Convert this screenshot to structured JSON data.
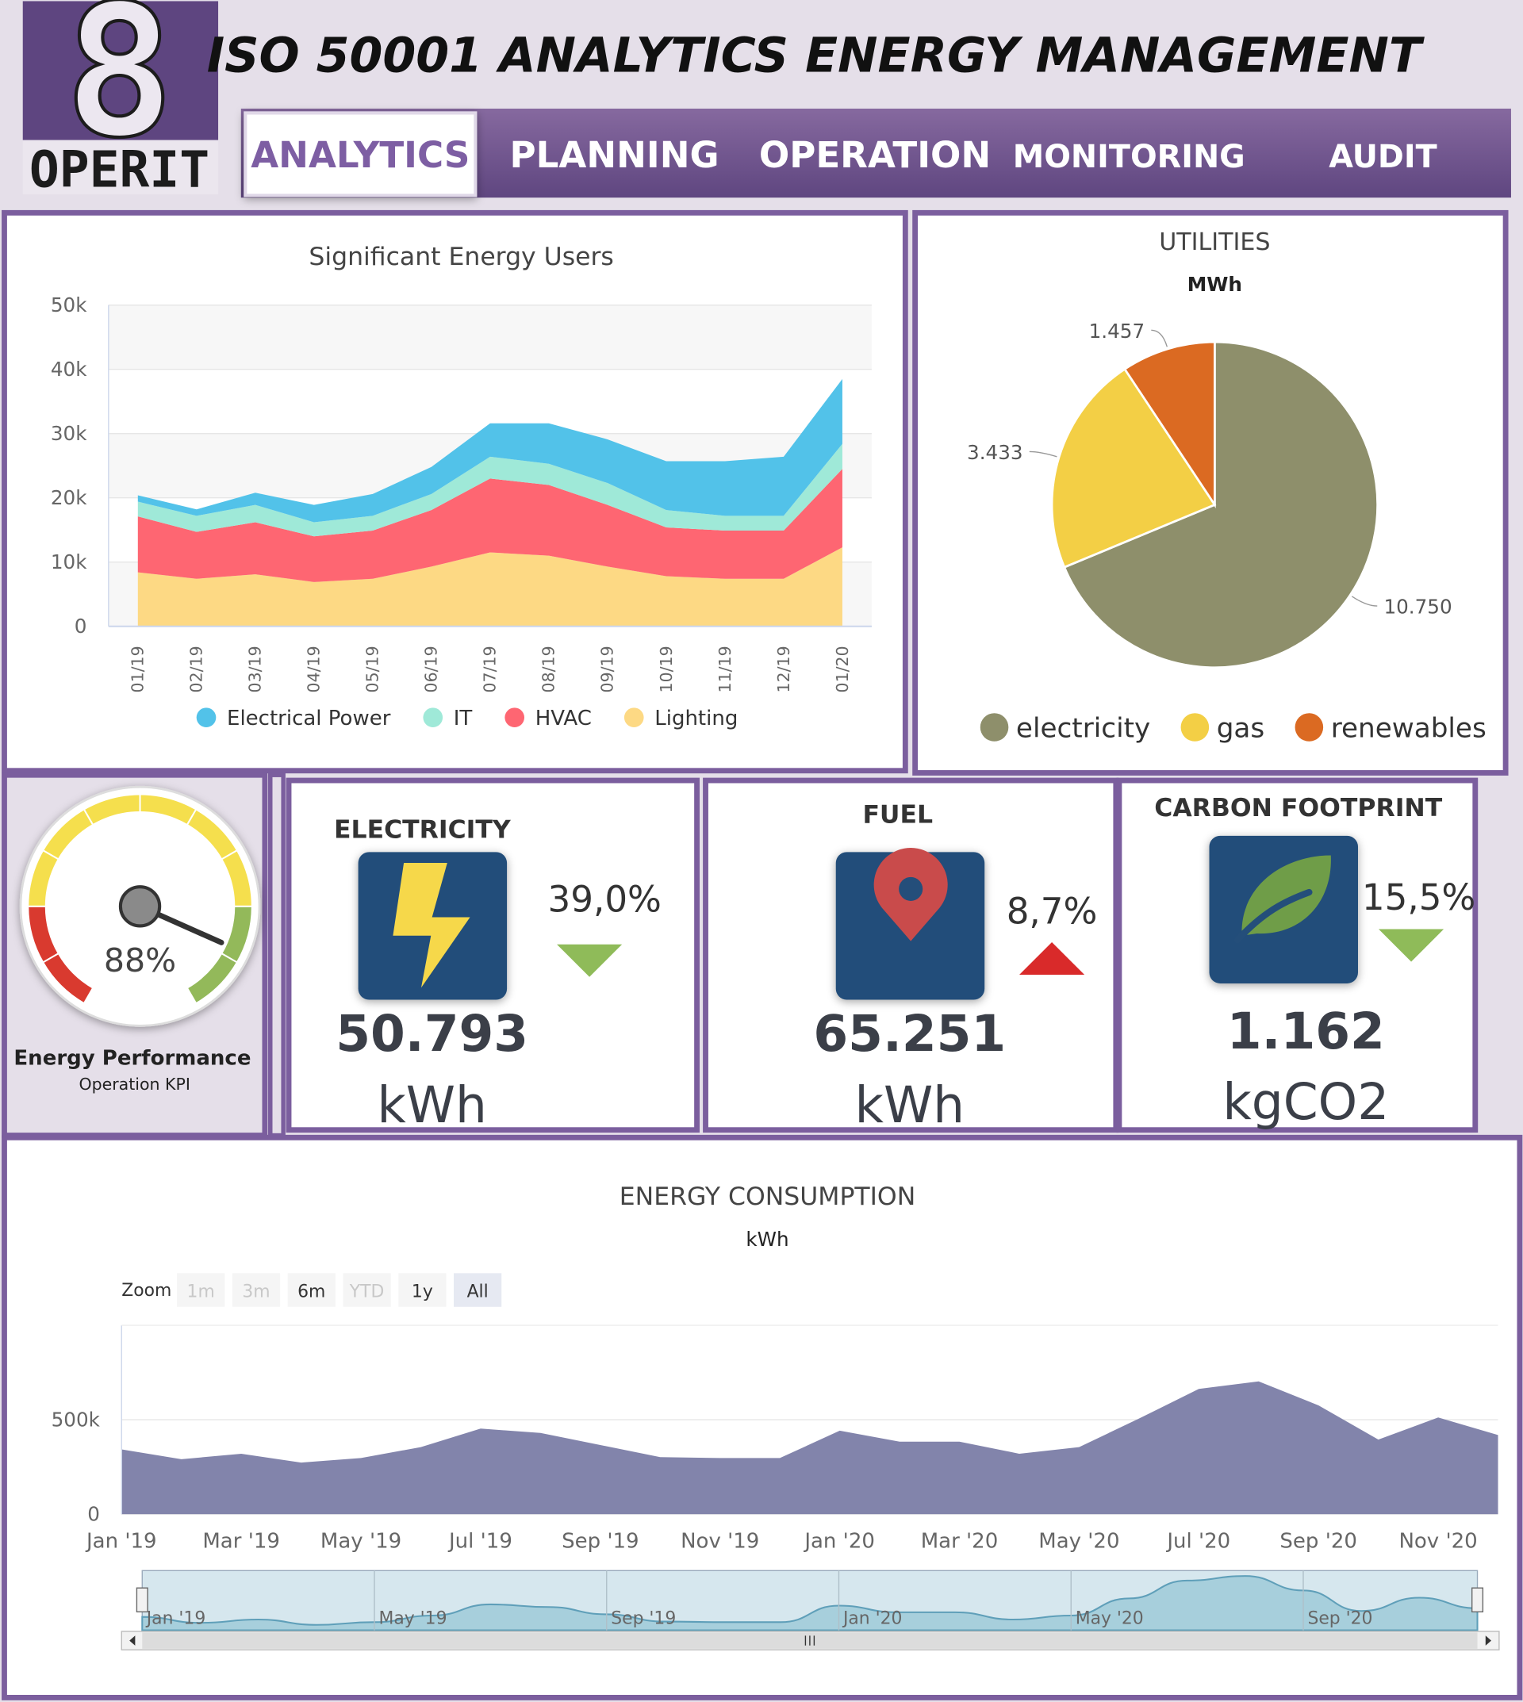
{
  "header": {
    "logo": {
      "digit": "8",
      "text": "OPERIT"
    },
    "title": "ISO 50001 ANALYTICS ENERGY MANAGEMENT"
  },
  "nav": [
    "ANALYTICS",
    "PLANNING",
    "OPERATION",
    "MONITORING",
    "AUDIT"
  ],
  "kpis": [
    {
      "title": "ELECTRICITY",
      "change": "39,0%",
      "trend": "down",
      "value": "50.793",
      "unit": "kWh"
    },
    {
      "title": "FUEL",
      "change": "8,7%",
      "trend": "up",
      "value": "65.251",
      "unit": "kWh"
    },
    {
      "title": "CARBON FOOTPRINT",
      "change": "15,5%",
      "trend": "down",
      "value": "1.162",
      "unit": "kgCO2"
    }
  ],
  "chart_data": [
    {
      "type": "area",
      "stacked": true,
      "title": "Significant Energy Users",
      "categories": [
        "01/19",
        "02/19",
        "03/19",
        "04/19",
        "05/19",
        "06/19",
        "07/19",
        "08/19",
        "09/19",
        "10/19",
        "11/19",
        "12/19",
        "01/20"
      ],
      "series": [
        {
          "name": "Electrical Power",
          "color": "#52c2e9",
          "values": [
            1000,
            1000,
            1900,
            2700,
            3400,
            4200,
            5200,
            6300,
            6800,
            7600,
            8500,
            9200,
            10100
          ]
        },
        {
          "name": "IT",
          "color": "#9fe9d8",
          "values": [
            2300,
            2500,
            2700,
            2200,
            2300,
            2500,
            3400,
            3300,
            3400,
            2700,
            2300,
            2300,
            3900
          ]
        },
        {
          "name": "HVAC",
          "color": "#fe6672",
          "values": [
            8700,
            7300,
            8100,
            7100,
            7500,
            8800,
            11500,
            11000,
            9600,
            7600,
            7500,
            7500,
            12200
          ]
        },
        {
          "name": "Lighting",
          "color": "#fdd984",
          "values": [
            8400,
            7400,
            8100,
            6900,
            7400,
            9300,
            11500,
            11000,
            9300,
            7800,
            7400,
            7400,
            12300
          ]
        }
      ],
      "ylim": [
        0,
        50000
      ],
      "yticks": [
        0,
        {
          "value": 10000,
          "label": "10k"
        },
        {
          "value": 20000,
          "label": "20k"
        },
        {
          "value": 30000,
          "label": "30k"
        },
        {
          "value": 40000,
          "label": "40k"
        },
        {
          "value": 50000,
          "label": "50k"
        }
      ],
      "grid": true
    },
    {
      "type": "pie",
      "title": "UTILITIES",
      "subtitle": "MWh",
      "categories": [
        "electricity",
        "gas",
        "renewables"
      ],
      "values": [
        10.75,
        3.433,
        1.457
      ],
      "value_labels": [
        "10.750",
        "3.433",
        "1.457"
      ],
      "colors": [
        "#8e8f6b",
        "#f3cf45",
        "#db6a22"
      ]
    },
    {
      "type": "gauge",
      "title": "Energy Performance",
      "subtitle": "Operation KPI",
      "value": 88,
      "value_label": "88%",
      "ylim": [
        0,
        100
      ],
      "bands": [
        {
          "from": 0,
          "to": 20,
          "color": "#d93a2f"
        },
        {
          "from": 20,
          "to": 80,
          "color": "#f5df4d"
        },
        {
          "from": 80,
          "to": 100,
          "color": "#93b95a"
        }
      ]
    },
    {
      "type": "area",
      "title": "ENERGY CONSUMPTION",
      "subtitle": "kWh",
      "color": "#8284ab",
      "x": [
        "2019-01",
        "2019-02",
        "2019-03",
        "2019-04",
        "2019-05",
        "2019-06",
        "2019-07",
        "2019-08",
        "2019-09",
        "2019-10",
        "2019-11",
        "2019-12",
        "2020-01",
        "2020-02",
        "2020-03",
        "2020-04",
        "2020-05",
        "2020-06",
        "2020-07",
        "2020-08",
        "2020-09",
        "2020-10",
        "2020-11",
        "2020-12"
      ],
      "values": [
        343000,
        291000,
        320000,
        273000,
        297000,
        355000,
        453000,
        430000,
        366000,
        302000,
        297000,
        297000,
        442000,
        384000,
        384000,
        320000,
        355000,
        506000,
        663000,
        703000,
        576000,
        395000,
        512000,
        419000
      ],
      "ylim": [
        0,
        1000000
      ],
      "yticks": [
        0,
        {
          "value": 500000,
          "label": "500k"
        }
      ],
      "xticks": [
        {
          "value": "2019-01",
          "label": "Jan '19"
        },
        {
          "value": "2019-03",
          "label": "Mar '19"
        },
        {
          "value": "2019-05",
          "label": "May '19"
        },
        {
          "value": "2019-07",
          "label": "Jul '19"
        },
        {
          "value": "2019-09",
          "label": "Sep '19"
        },
        {
          "value": "2019-11",
          "label": "Nov '19"
        },
        {
          "value": "2020-01",
          "label": "Jan '20"
        },
        {
          "value": "2020-03",
          "label": "Mar '20"
        },
        {
          "value": "2020-05",
          "label": "May '20"
        },
        {
          "value": "2020-07",
          "label": "Jul '20"
        },
        {
          "value": "2020-09",
          "label": "Sep '20"
        },
        {
          "value": "2020-11",
          "label": "Nov '20"
        }
      ],
      "navigator_ticks": [
        {
          "value": "2019-01",
          "label": "Jan '19"
        },
        {
          "value": "2019-05",
          "label": "May '19"
        },
        {
          "value": "2019-09",
          "label": "Sep '19"
        },
        {
          "value": "2020-01",
          "label": "Jan '20"
        },
        {
          "value": "2020-05",
          "label": "May '20"
        },
        {
          "value": "2020-09",
          "label": "Sep '20"
        }
      ],
      "zoom": {
        "label": "Zoom",
        "buttons": [
          {
            "text": "1m",
            "enabled": false
          },
          {
            "text": "3m",
            "enabled": false
          },
          {
            "text": "6m",
            "enabled": true
          },
          {
            "text": "YTD",
            "enabled": false
          },
          {
            "text": "1y",
            "enabled": true
          },
          {
            "text": "All",
            "enabled": true,
            "selected": true
          }
        ]
      }
    }
  ]
}
